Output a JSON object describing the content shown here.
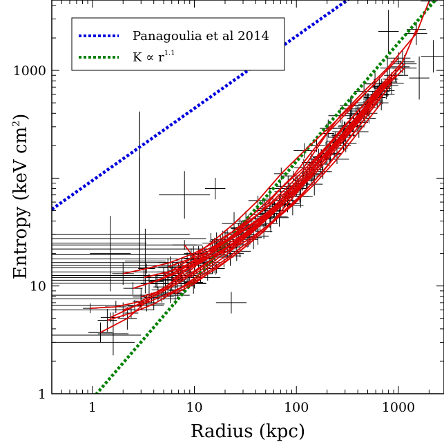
{
  "chart_data": {
    "type": "scatter",
    "xlabel": "Radius (kpc)",
    "ylabel": "Entropy (keV cm",
    "ylabel_sup": "2",
    "ylabel_close": ")",
    "xscale": "log",
    "yscale": "log",
    "xlim": [
      0.4,
      2800
    ],
    "ylim": [
      1,
      4500
    ],
    "x_ticks": [
      1,
      10,
      100,
      1000
    ],
    "x_tick_labels": [
      "1",
      "10",
      "100",
      "1000"
    ],
    "y_ticks": [
      1,
      10,
      1000
    ],
    "y_tick_labels": [
      "1",
      "10",
      "1000"
    ],
    "grid": false,
    "legend_position": "top-left",
    "legend": [
      {
        "label": "Panagoulia et al 2014",
        "color": "#0000dd",
        "style": "dotted"
      },
      {
        "label_base": "K ∝ r",
        "label_sup": "1.1",
        "color": "#008000",
        "style": "dotted"
      }
    ],
    "model_lines": [
      {
        "name": "Panagoulia et al 2014",
        "form": "power-law",
        "norm": 95,
        "index": 0.67,
        "color": "#0000dd"
      },
      {
        "name": "K ∝ r^1.1",
        "form": "power-law",
        "norm": 0.9,
        "index": 1.1,
        "color": "#008000"
      }
    ],
    "profiles_color": "#dd0000",
    "profiles": [
      [
        [
          0.95,
          6.2
        ],
        [
          1.7,
          6.4
        ],
        [
          3.0,
          7.2
        ],
        [
          5.2,
          9.8
        ],
        [
          8.8,
          13.5
        ],
        [
          15,
          21
        ],
        [
          25,
          31
        ],
        [
          42,
          46
        ],
        [
          70,
          80
        ],
        [
          118,
          125
        ],
        [
          200,
          260
        ],
        [
          340,
          440
        ],
        [
          580,
          750
        ],
        [
          1000,
          1300
        ]
      ],
      [
        [
          1.4,
          4.8
        ],
        [
          2.4,
          5.6
        ],
        [
          4.0,
          6.8
        ],
        [
          6.8,
          9.1
        ],
        [
          11.5,
          13
        ],
        [
          19.5,
          18.5
        ],
        [
          33,
          29
        ],
        [
          56,
          47
        ],
        [
          95,
          78
        ],
        [
          160,
          135
        ],
        [
          270,
          240
        ],
        [
          460,
          420
        ],
        [
          780,
          720
        ]
      ],
      [
        [
          1.2,
          3.7
        ],
        [
          2.2,
          5.0
        ],
        [
          3.8,
          7.8
        ],
        [
          6.5,
          11.5
        ],
        [
          11,
          17.5
        ],
        [
          19,
          27
        ],
        [
          32,
          40
        ],
        [
          55,
          64
        ],
        [
          93,
          105
        ],
        [
          158,
          200
        ],
        [
          270,
          380
        ],
        [
          460,
          640
        ],
        [
          780,
          1050
        ],
        [
          1500,
          2200
        ],
        [
          2000,
          4400
        ]
      ],
      [
        [
          3.0,
          7.9
        ],
        [
          5.0,
          9.2
        ],
        [
          8.5,
          12.5
        ],
        [
          14,
          17
        ],
        [
          24,
          24.5
        ],
        [
          40,
          37
        ],
        [
          68,
          58
        ],
        [
          115,
          95
        ],
        [
          195,
          170
        ],
        [
          330,
          310
        ],
        [
          560,
          560
        ],
        [
          950,
          900
        ]
      ],
      [
        [
          2.0,
          6.0
        ],
        [
          3.4,
          7.0
        ],
        [
          5.8,
          8.6
        ],
        [
          9.8,
          10.8
        ],
        [
          16.5,
          14.5
        ],
        [
          28,
          21
        ],
        [
          48,
          32
        ],
        [
          82,
          58
        ],
        [
          140,
          105
        ],
        [
          235,
          200
        ],
        [
          400,
          360
        ],
        [
          680,
          640
        ],
        [
          1150,
          1050
        ]
      ],
      [
        [
          4.2,
          11.0
        ],
        [
          7.0,
          14.0
        ],
        [
          12,
          19.5
        ],
        [
          20,
          26
        ],
        [
          34,
          36
        ],
        [
          58,
          52
        ],
        [
          98,
          90
        ],
        [
          165,
          160
        ],
        [
          280,
          290
        ],
        [
          480,
          500
        ],
        [
          820,
          830
        ]
      ],
      [
        [
          1.5,
          5.1
        ],
        [
          2.6,
          6.5
        ],
        [
          4.4,
          8.4
        ],
        [
          7.4,
          11
        ],
        [
          12.5,
          15.5
        ],
        [
          21,
          22.5
        ],
        [
          36,
          33
        ],
        [
          61,
          50
        ],
        [
          104,
          85
        ],
        [
          176,
          150
        ],
        [
          300,
          270
        ],
        [
          510,
          480
        ]
      ],
      [
        [
          6.0,
          11.5
        ],
        [
          10,
          15.5
        ],
        [
          17,
          23
        ],
        [
          29,
          34
        ],
        [
          49,
          52
        ],
        [
          83,
          84
        ],
        [
          140,
          140
        ],
        [
          240,
          240
        ],
        [
          400,
          420
        ],
        [
          680,
          710
        ],
        [
          1150,
          1150
        ]
      ],
      [
        [
          3.6,
          10.5
        ],
        [
          6.1,
          13.0
        ],
        [
          10.3,
          16.5
        ],
        [
          17.5,
          22
        ],
        [
          30,
          30
        ],
        [
          50,
          44
        ],
        [
          85,
          70
        ],
        [
          145,
          120
        ],
        [
          245,
          215
        ],
        [
          415,
          390
        ],
        [
          700,
          680
        ]
      ],
      [
        [
          7.5,
          15
        ],
        [
          12.5,
          18.5
        ],
        [
          21,
          26
        ],
        [
          36,
          36
        ],
        [
          61,
          55
        ],
        [
          103,
          90
        ],
        [
          175,
          155
        ],
        [
          295,
          270
        ],
        [
          500,
          480
        ],
        [
          850,
          830
        ]
      ],
      [
        [
          5.0,
          12.5
        ],
        [
          8.5,
          17
        ],
        [
          14.5,
          25
        ],
        [
          24.5,
          38
        ],
        [
          42,
          62
        ],
        [
          71,
          110
        ],
        [
          120,
          180
        ],
        [
          205,
          290
        ],
        [
          350,
          470
        ],
        [
          590,
          750
        ]
      ],
      [
        [
          2.5,
          9.5
        ],
        [
          4.3,
          11.2
        ],
        [
          7.3,
          13.5
        ],
        [
          12.3,
          17
        ],
        [
          21,
          23
        ],
        [
          35,
          33
        ],
        [
          60,
          49
        ],
        [
          100,
          80
        ],
        [
          172,
          135
        ],
        [
          290,
          250
        ],
        [
          490,
          450
        ],
        [
          830,
          780
        ]
      ],
      [
        [
          8.0,
          24
        ],
        [
          11,
          16
        ],
        [
          15,
          19
        ],
        [
          22,
          23
        ],
        [
          35,
          30
        ],
        [
          55,
          44
        ],
        [
          90,
          68
        ],
        [
          150,
          108
        ],
        [
          250,
          190
        ],
        [
          420,
          340
        ],
        [
          700,
          600
        ]
      ],
      [
        [
          6.5,
          8.5
        ],
        [
          10,
          10.5
        ],
        [
          16,
          14.5
        ],
        [
          26,
          20
        ],
        [
          42,
          29
        ],
        [
          68,
          44
        ],
        [
          110,
          68
        ],
        [
          180,
          115
        ],
        [
          290,
          200
        ],
        [
          470,
          360
        ],
        [
          760,
          650
        ]
      ],
      [
        [
          9.0,
          12.0
        ],
        [
          15,
          16.5
        ],
        [
          25,
          24
        ],
        [
          42,
          36
        ],
        [
          70,
          58
        ],
        [
          118,
          98
        ],
        [
          200,
          170
        ],
        [
          335,
          300
        ],
        [
          560,
          520
        ],
        [
          940,
          900
        ]
      ],
      [
        [
          3.2,
          12.0
        ],
        [
          5.5,
          13.5
        ],
        [
          9.2,
          15.5
        ],
        [
          15.5,
          19.5
        ],
        [
          26,
          26
        ],
        [
          44,
          37
        ],
        [
          74,
          57
        ],
        [
          125,
          95
        ],
        [
          210,
          165
        ],
        [
          355,
          300
        ],
        [
          600,
          560
        ]
      ],
      [
        [
          11,
          20
        ],
        [
          18,
          25
        ],
        [
          30,
          33
        ],
        [
          50,
          46
        ],
        [
          84,
          68
        ],
        [
          140,
          110
        ],
        [
          235,
          190
        ],
        [
          395,
          330
        ],
        [
          660,
          600
        ]
      ],
      [
        [
          4.8,
          8.0
        ],
        [
          8.0,
          10
        ],
        [
          13.5,
          13.5
        ],
        [
          22.5,
          19
        ],
        [
          38,
          28
        ],
        [
          64,
          43
        ],
        [
          108,
          68
        ],
        [
          182,
          115
        ],
        [
          305,
          210
        ],
        [
          515,
          400
        ],
        [
          860,
          760
        ]
      ],
      [
        [
          13,
          18
        ],
        [
          21,
          21
        ],
        [
          34,
          27
        ],
        [
          56,
          38
        ],
        [
          92,
          56
        ],
        [
          150,
          88
        ],
        [
          250,
          150
        ],
        [
          410,
          270
        ],
        [
          680,
          500
        ]
      ],
      [
        [
          2.0,
          13.0
        ],
        [
          3.4,
          14.5
        ],
        [
          5.8,
          16.5
        ],
        [
          9.8,
          20
        ],
        [
          16.5,
          26
        ],
        [
          28,
          35
        ],
        [
          47,
          50
        ],
        [
          80,
          75
        ],
        [
          135,
          125
        ],
        [
          228,
          220
        ],
        [
          385,
          400
        ],
        [
          650,
          700
        ],
        [
          1100,
          1200
        ],
        [
          1500,
          2400
        ]
      ],
      [
        [
          16,
          22
        ],
        [
          27,
          30
        ],
        [
          45,
          42
        ],
        [
          76,
          62
        ],
        [
          128,
          98
        ],
        [
          215,
          170
        ],
        [
          365,
          300
        ],
        [
          620,
          560
        ]
      ],
      [
        [
          5.5,
          15
        ],
        [
          9.3,
          18
        ],
        [
          15.8,
          22
        ],
        [
          27,
          30
        ],
        [
          45,
          42
        ],
        [
          76,
          62
        ],
        [
          128,
          98
        ],
        [
          215,
          170
        ],
        [
          365,
          310
        ],
        [
          615,
          590
        ],
        [
          1040,
          1080
        ]
      ]
    ],
    "single_points": [
      {
        "x": 2.9,
        "y": 55,
        "xerr_lo": 0,
        "xerr_hi": 0,
        "yerr_lo": 24,
        "yerr_hi": 360
      },
      {
        "x": 2.9,
        "y": 25,
        "xerr_lo": 2.6,
        "xerr_hi": 0.5,
        "yerr_lo": 11,
        "yerr_hi": 130
      }
    ],
    "outlier_crosses": [
      {
        "x": 8.0,
        "y": 70,
        "dx": 0.25,
        "dy": 0.22
      },
      {
        "x": 3.3,
        "y": 17,
        "dx": 0.2,
        "dy": 0.3
      },
      {
        "x": 1.5,
        "y": 20,
        "dx": 0.2,
        "dy": 0.35
      },
      {
        "x": 1.6,
        "y": 3.6,
        "dx": 0.15,
        "dy": 0.2
      },
      {
        "x": 5.5,
        "y": 10.5,
        "dx": 0.15,
        "dy": 0.12
      },
      {
        "x": 16,
        "y": 80,
        "dx": 0.1,
        "dy": 0.1
      },
      {
        "x": 23,
        "y": 7.0,
        "dx": 0.15,
        "dy": 0.1
      },
      {
        "x": 2200,
        "y": 1350,
        "dx": 0.12,
        "dy": 0.15
      },
      {
        "x": 800,
        "y": 2300,
        "dx": 0.1,
        "dy": 0.2
      },
      {
        "x": 1600,
        "y": 850,
        "dx": 0.1,
        "dy": 0.2
      }
    ],
    "horizontal_error_bars": [
      {
        "y": 30,
        "x_lo": 0.4,
        "x_hi": 9.0
      },
      {
        "y": 27.5,
        "x_lo": 0.4,
        "x_hi": 13
      },
      {
        "y": 24,
        "x_lo": 0.4,
        "x_hi": 12
      },
      {
        "y": 22,
        "x_lo": 0.4,
        "x_hi": 15
      },
      {
        "y": 19.5,
        "x_lo": 0.4,
        "x_hi": 10
      },
      {
        "y": 17.8,
        "x_lo": 0.4,
        "x_hi": 16
      },
      {
        "y": 16.5,
        "x_lo": 0.4,
        "x_hi": 11
      },
      {
        "y": 15.5,
        "x_lo": 0.4,
        "x_hi": 14
      },
      {
        "y": 14.8,
        "x_lo": 0.4,
        "x_hi": 9
      },
      {
        "y": 13.5,
        "x_lo": 0.4,
        "x_hi": 12
      },
      {
        "y": 12.5,
        "x_lo": 0.4,
        "x_hi": 10
      },
      {
        "y": 12.0,
        "x_lo": 0.4,
        "x_hi": 18
      },
      {
        "y": 11.3,
        "x_lo": 0.4,
        "x_hi": 8
      },
      {
        "y": 10.6,
        "x_lo": 0.4,
        "x_hi": 13
      },
      {
        "y": 8.2,
        "x_lo": 0.4,
        "x_hi": 9
      },
      {
        "y": 7.6,
        "x_lo": 0.4,
        "x_hi": 7
      },
      {
        "y": 6.6,
        "x_lo": 0.4,
        "x_hi": 5
      },
      {
        "y": 6.0,
        "x_lo": 0.4,
        "x_hi": 4
      },
      {
        "y": 3.5,
        "x_lo": 0.4,
        "x_hi": 3
      },
      {
        "y": 3.0,
        "x_lo": 0.4,
        "x_hi": 2.6
      }
    ]
  }
}
